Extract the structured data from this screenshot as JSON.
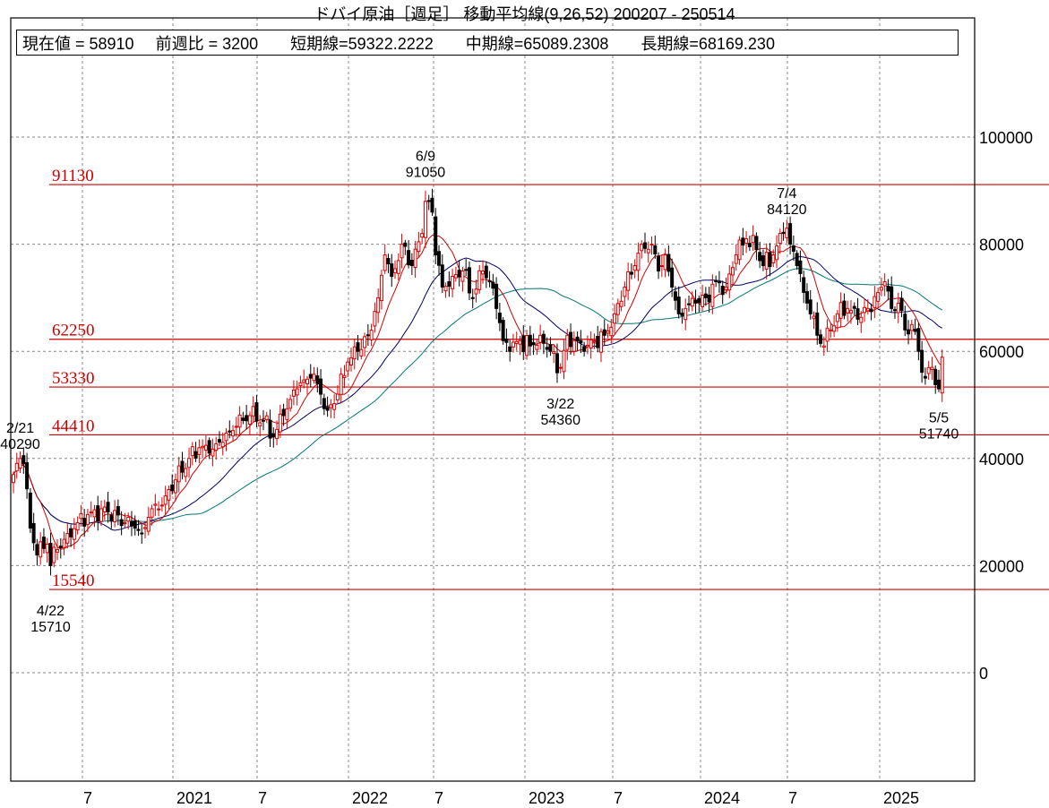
{
  "title": "ドバイ原油［週足］ 移動平均線(9,26,52)  200207 - 250514",
  "info": {
    "current": "現在値 = 58910",
    "weekly_change": "前週比 = 3200",
    "short_ma": "短期線=59322.2222",
    "mid_ma": "中期線=65089.2308",
    "long_ma": "長期線=68169.230"
  },
  "colors": {
    "up": "#dd0000",
    "down": "#000000",
    "ma_short": "#cc0000",
    "ma_mid": "#000066",
    "ma_long": "#007777",
    "level": "#cc0000",
    "grid": "#888888"
  },
  "chart_data": {
    "type": "candlestick",
    "title": "ドバイ原油［週足］ 移動平均線(9,26,52)",
    "period": "200207 - 250514",
    "ylim": [
      -20000,
      120000
    ],
    "y_ticks": [
      {
        "v": 100000,
        "label": "100000"
      },
      {
        "v": 80000,
        "label": "80000"
      },
      {
        "v": 60000,
        "label": "60000"
      },
      {
        "v": 40000,
        "label": "40000"
      },
      {
        "v": 20000,
        "label": "20000"
      },
      {
        "v": 0,
        "label": "0"
      }
    ],
    "x_ticks": [
      {
        "week": 21,
        "label": "7"
      },
      {
        "week": 48,
        "label": "2021"
      },
      {
        "week": 73,
        "label": "7"
      },
      {
        "week": 100,
        "label": "2022"
      },
      {
        "week": 125,
        "label": "7"
      },
      {
        "week": 152,
        "label": "2023"
      },
      {
        "week": 178,
        "label": "7"
      },
      {
        "week": 204,
        "label": "2024"
      },
      {
        "week": 230,
        "label": "7"
      },
      {
        "week": 257,
        "label": "2025"
      }
    ],
    "moving_averages": [
      9,
      26,
      52
    ],
    "weeks": 276,
    "weekly_close_points": [
      [
        0,
        37000
      ],
      [
        2,
        40000
      ],
      [
        3,
        39000
      ],
      [
        5,
        27000
      ],
      [
        7,
        22000
      ],
      [
        10,
        24000
      ],
      [
        11,
        20000
      ],
      [
        13,
        23000
      ],
      [
        16,
        26000
      ],
      [
        19,
        28000
      ],
      [
        23,
        30000
      ],
      [
        28,
        30000
      ],
      [
        33,
        28000
      ],
      [
        36,
        27000
      ],
      [
        38,
        26000
      ],
      [
        40,
        29000
      ],
      [
        45,
        33000
      ],
      [
        48,
        36000
      ],
      [
        52,
        40000
      ],
      [
        55,
        42000
      ],
      [
        58,
        41000
      ],
      [
        62,
        43000
      ],
      [
        66,
        46000
      ],
      [
        70,
        48000
      ],
      [
        74,
        47000
      ],
      [
        77,
        44000
      ],
      [
        80,
        48000
      ],
      [
        84,
        53000
      ],
      [
        88,
        55000
      ],
      [
        90,
        54000
      ],
      [
        93,
        49000
      ],
      [
        96,
        52000
      ],
      [
        99,
        58000
      ],
      [
        102,
        60000
      ],
      [
        105,
        63000
      ],
      [
        108,
        70000
      ],
      [
        110,
        78000
      ],
      [
        112,
        74000
      ],
      [
        115,
        80000
      ],
      [
        118,
        76000
      ],
      [
        121,
        82000
      ],
      [
        122,
        88000
      ],
      [
        124,
        86000
      ],
      [
        125,
        78000
      ],
      [
        127,
        72000
      ],
      [
        130,
        74000
      ],
      [
        133,
        75000
      ],
      [
        136,
        70000
      ],
      [
        139,
        75000
      ],
      [
        141,
        73000
      ],
      [
        143,
        68000
      ],
      [
        145,
        62000
      ],
      [
        147,
        60000
      ],
      [
        150,
        62000
      ],
      [
        153,
        61000
      ],
      [
        156,
        63000
      ],
      [
        159,
        60000
      ],
      [
        161,
        56000
      ],
      [
        162,
        57000
      ],
      [
        164,
        63000
      ],
      [
        166,
        62000
      ],
      [
        169,
        60000
      ],
      [
        172,
        62000
      ],
      [
        175,
        63000
      ],
      [
        178,
        67000
      ],
      [
        181,
        72000
      ],
      [
        184,
        76000
      ],
      [
        186,
        80000
      ],
      [
        189,
        80000
      ],
      [
        191,
        75000
      ],
      [
        193,
        78000
      ],
      [
        195,
        72000
      ],
      [
        197,
        67000
      ],
      [
        199,
        68000
      ],
      [
        202,
        69000
      ],
      [
        205,
        70000
      ],
      [
        208,
        73000
      ],
      [
        211,
        72000
      ],
      [
        214,
        78000
      ],
      [
        217,
        81000
      ],
      [
        220,
        79000
      ],
      [
        222,
        76000
      ],
      [
        225,
        78000
      ],
      [
        228,
        82000
      ],
      [
        229,
        83000
      ],
      [
        230,
        80000
      ],
      [
        232,
        76000
      ],
      [
        234,
        71000
      ],
      [
        236,
        67000
      ],
      [
        238,
        63000
      ],
      [
        240,
        61000
      ],
      [
        242,
        64000
      ],
      [
        244,
        67000
      ],
      [
        247,
        68000
      ],
      [
        250,
        66000
      ],
      [
        253,
        68000
      ],
      [
        256,
        71000
      ],
      [
        258,
        73000
      ],
      [
        260,
        68000
      ],
      [
        262,
        69000
      ],
      [
        264,
        64000
      ],
      [
        266,
        65000
      ],
      [
        268,
        60000
      ],
      [
        270,
        55000
      ],
      [
        272,
        57000
      ],
      [
        274,
        53000
      ],
      [
        275,
        58910
      ]
    ],
    "levels": [
      {
        "v": 91130,
        "label": "91130"
      },
      {
        "v": 62250,
        "label": "62250"
      },
      {
        "v": 53330,
        "label": "53330"
      },
      {
        "v": 44410,
        "label": "44410"
      },
      {
        "v": 15540,
        "label": "15540"
      }
    ],
    "annotations": [
      {
        "week": 2,
        "date": "2/21",
        "value": "40290",
        "v": 40290,
        "pos": "above"
      },
      {
        "week": 11,
        "date": "4/22",
        "value": "15710",
        "v": 15710,
        "pos": "below"
      },
      {
        "week": 122,
        "date": "6/9",
        "value": "91050",
        "v": 91050,
        "pos": "above"
      },
      {
        "week": 162,
        "date": "3/22",
        "value": "54360",
        "v": 54360,
        "pos": "below"
      },
      {
        "week": 229,
        "date": "7/4",
        "value": "84120",
        "v": 84120,
        "pos": "above"
      },
      {
        "week": 274,
        "date": "5/5",
        "value": "51740",
        "v": 51740,
        "pos": "below"
      }
    ]
  }
}
